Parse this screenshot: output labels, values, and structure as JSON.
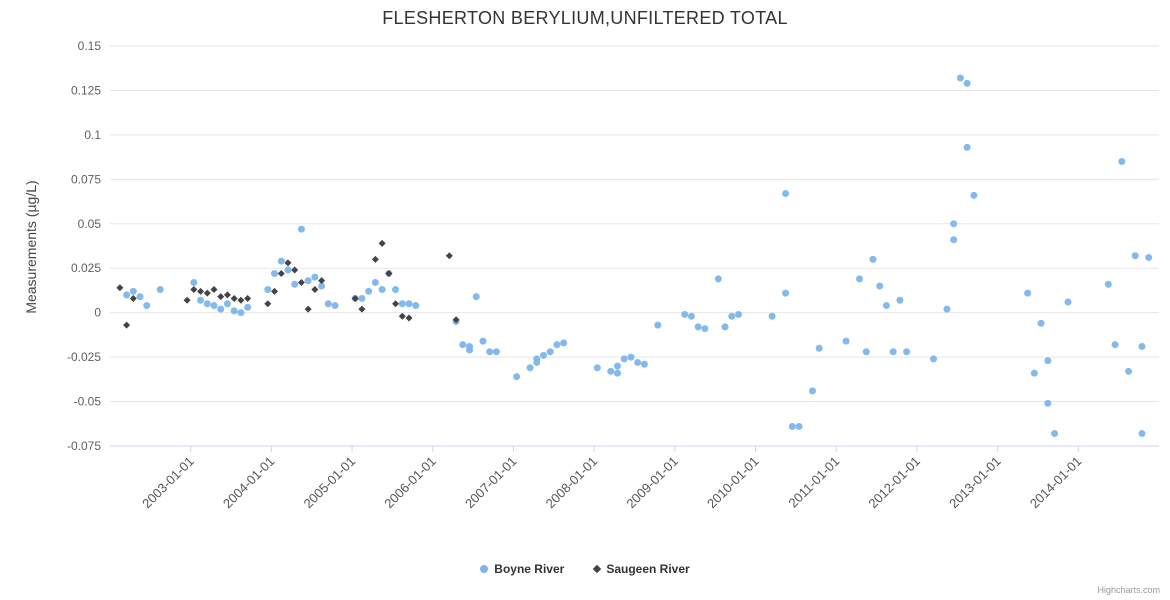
{
  "title": "FLESHERTON BERYLIUM,UNFILTERED TOTAL",
  "credit": "Highcharts.com",
  "chart_data": {
    "type": "scatter",
    "title": "FLESHERTON BERYLIUM,UNFILTERED TOTAL",
    "xlabel": "",
    "ylabel": "Measurements (µg/L)",
    "ylim": [
      -0.075,
      0.15
    ],
    "yticks": [
      0.15,
      0.125,
      0.1,
      0.075,
      0.05,
      0.025,
      0,
      -0.025,
      -0.05,
      -0.075
    ],
    "xticks": [
      "2003-01-01",
      "2004-01-01",
      "2005-01-01",
      "2006-01-01",
      "2007-01-01",
      "2008-01-01",
      "2009-01-01",
      "2010-01-01",
      "2011-01-01",
      "2012-01-01",
      "2013-01-01",
      "2014-01-01"
    ],
    "xlim_years": [
      2002.0,
      2015.0
    ],
    "grid": true,
    "legend_position": "bottom",
    "series": [
      {
        "name": "Boyne River",
        "color": "#7cb5ec",
        "marker": "circle",
        "points": [
          [
            "2002-03",
            0.01
          ],
          [
            "2002-04",
            0.012
          ],
          [
            "2002-05",
            0.009
          ],
          [
            "2002-06",
            0.004
          ],
          [
            "2002-08",
            0.013
          ],
          [
            "2003-01",
            0.017
          ],
          [
            "2003-02",
            0.007
          ],
          [
            "2003-03",
            0.005
          ],
          [
            "2003-04",
            0.004
          ],
          [
            "2003-05",
            0.002
          ],
          [
            "2003-06",
            0.005
          ],
          [
            "2003-07",
            0.001
          ],
          [
            "2003-08",
            0.0
          ],
          [
            "2003-09",
            0.003
          ],
          [
            "2003-12",
            0.013
          ],
          [
            "2004-01",
            0.022
          ],
          [
            "2004-02",
            0.029
          ],
          [
            "2004-03",
            0.024
          ],
          [
            "2004-04",
            0.016
          ],
          [
            "2004-05",
            0.047
          ],
          [
            "2004-06",
            0.018
          ],
          [
            "2004-07",
            0.02
          ],
          [
            "2004-08",
            0.015
          ],
          [
            "2004-09",
            0.005
          ],
          [
            "2004-10",
            0.004
          ],
          [
            "2005-01",
            0.008
          ],
          [
            "2005-02",
            0.008
          ],
          [
            "2005-03",
            0.012
          ],
          [
            "2005-04",
            0.017
          ],
          [
            "2005-05",
            0.013
          ],
          [
            "2005-06",
            0.022
          ],
          [
            "2005-07",
            0.013
          ],
          [
            "2005-08",
            0.005
          ],
          [
            "2005-09",
            0.005
          ],
          [
            "2005-10",
            0.004
          ],
          [
            "2006-04",
            -0.005
          ],
          [
            "2006-05",
            -0.018
          ],
          [
            "2006-06",
            -0.019
          ],
          [
            "2006-06",
            -0.021
          ],
          [
            "2006-07",
            0.009
          ],
          [
            "2006-08",
            -0.016
          ],
          [
            "2006-09",
            -0.022
          ],
          [
            "2006-10",
            -0.022
          ],
          [
            "2007-01",
            -0.036
          ],
          [
            "2007-03",
            -0.031
          ],
          [
            "2007-04",
            -0.026
          ],
          [
            "2007-04",
            -0.028
          ],
          [
            "2007-05",
            -0.024
          ],
          [
            "2007-06",
            -0.022
          ],
          [
            "2007-07",
            -0.018
          ],
          [
            "2007-08",
            -0.017
          ],
          [
            "2008-01",
            -0.031
          ],
          [
            "2008-03",
            -0.033
          ],
          [
            "2008-04",
            -0.034
          ],
          [
            "2008-04",
            -0.03
          ],
          [
            "2008-05",
            -0.026
          ],
          [
            "2008-06",
            -0.025
          ],
          [
            "2008-07",
            -0.028
          ],
          [
            "2008-08",
            -0.029
          ],
          [
            "2008-10",
            -0.007
          ],
          [
            "2009-02",
            -0.001
          ],
          [
            "2009-03",
            -0.002
          ],
          [
            "2009-04",
            -0.008
          ],
          [
            "2009-05",
            -0.009
          ],
          [
            "2009-07",
            0.019
          ],
          [
            "2009-08",
            -0.008
          ],
          [
            "2009-09",
            -0.002
          ],
          [
            "2009-10",
            -0.001
          ],
          [
            "2010-03",
            -0.002
          ],
          [
            "2010-05",
            0.011
          ],
          [
            "2010-05",
            0.067
          ],
          [
            "2010-06",
            -0.064
          ],
          [
            "2010-07",
            -0.064
          ],
          [
            "2010-09",
            -0.044
          ],
          [
            "2010-10",
            -0.02
          ],
          [
            "2011-02",
            -0.016
          ],
          [
            "2011-04",
            0.019
          ],
          [
            "2011-05",
            -0.022
          ],
          [
            "2011-06",
            0.03
          ],
          [
            "2011-07",
            0.015
          ],
          [
            "2011-08",
            0.004
          ],
          [
            "2011-09",
            -0.022
          ],
          [
            "2011-10",
            0.007
          ],
          [
            "2011-11",
            -0.022
          ],
          [
            "2012-03",
            -0.026
          ],
          [
            "2012-05",
            0.002
          ],
          [
            "2012-06",
            0.041
          ],
          [
            "2012-06",
            0.05
          ],
          [
            "2012-07",
            0.132
          ],
          [
            "2012-08",
            0.129
          ],
          [
            "2012-08",
            0.093
          ],
          [
            "2012-09",
            0.066
          ],
          [
            "2013-05",
            0.011
          ],
          [
            "2013-06",
            -0.034
          ],
          [
            "2013-07",
            -0.006
          ],
          [
            "2013-08",
            -0.027
          ],
          [
            "2013-08",
            -0.051
          ],
          [
            "2013-09",
            -0.068
          ],
          [
            "2013-11",
            0.006
          ],
          [
            "2014-05",
            0.016
          ],
          [
            "2014-06",
            -0.018
          ],
          [
            "2014-07",
            0.085
          ],
          [
            "2014-08",
            -0.033
          ],
          [
            "2014-09",
            0.032
          ],
          [
            "2014-10",
            -0.068
          ],
          [
            "2014-10",
            -0.019
          ],
          [
            "2014-11",
            0.031
          ]
        ]
      },
      {
        "name": "Saugeen River",
        "color": "#434348",
        "marker": "diamond",
        "points": [
          [
            "2002-02",
            0.014
          ],
          [
            "2002-03",
            -0.007
          ],
          [
            "2002-04",
            0.008
          ],
          [
            "2002-12",
            0.007
          ],
          [
            "2003-01",
            0.013
          ],
          [
            "2003-02",
            0.012
          ],
          [
            "2003-03",
            0.011
          ],
          [
            "2003-04",
            0.013
          ],
          [
            "2003-05",
            0.009
          ],
          [
            "2003-06",
            0.01
          ],
          [
            "2003-07",
            0.008
          ],
          [
            "2003-08",
            0.007
          ],
          [
            "2003-09",
            0.008
          ],
          [
            "2003-12",
            0.005
          ],
          [
            "2004-01",
            0.012
          ],
          [
            "2004-02",
            0.022
          ],
          [
            "2004-03",
            0.028
          ],
          [
            "2004-04",
            0.024
          ],
          [
            "2004-05",
            0.017
          ],
          [
            "2004-06",
            0.002
          ],
          [
            "2004-07",
            0.013
          ],
          [
            "2004-08",
            0.018
          ],
          [
            "2005-01",
            0.008
          ],
          [
            "2005-02",
            0.002
          ],
          [
            "2005-04",
            0.03
          ],
          [
            "2005-05",
            0.039
          ],
          [
            "2005-06",
            0.022
          ],
          [
            "2005-07",
            0.005
          ],
          [
            "2005-08",
            -0.002
          ],
          [
            "2005-09",
            -0.003
          ],
          [
            "2006-03",
            0.032
          ],
          [
            "2006-04",
            -0.004
          ]
        ]
      }
    ]
  }
}
